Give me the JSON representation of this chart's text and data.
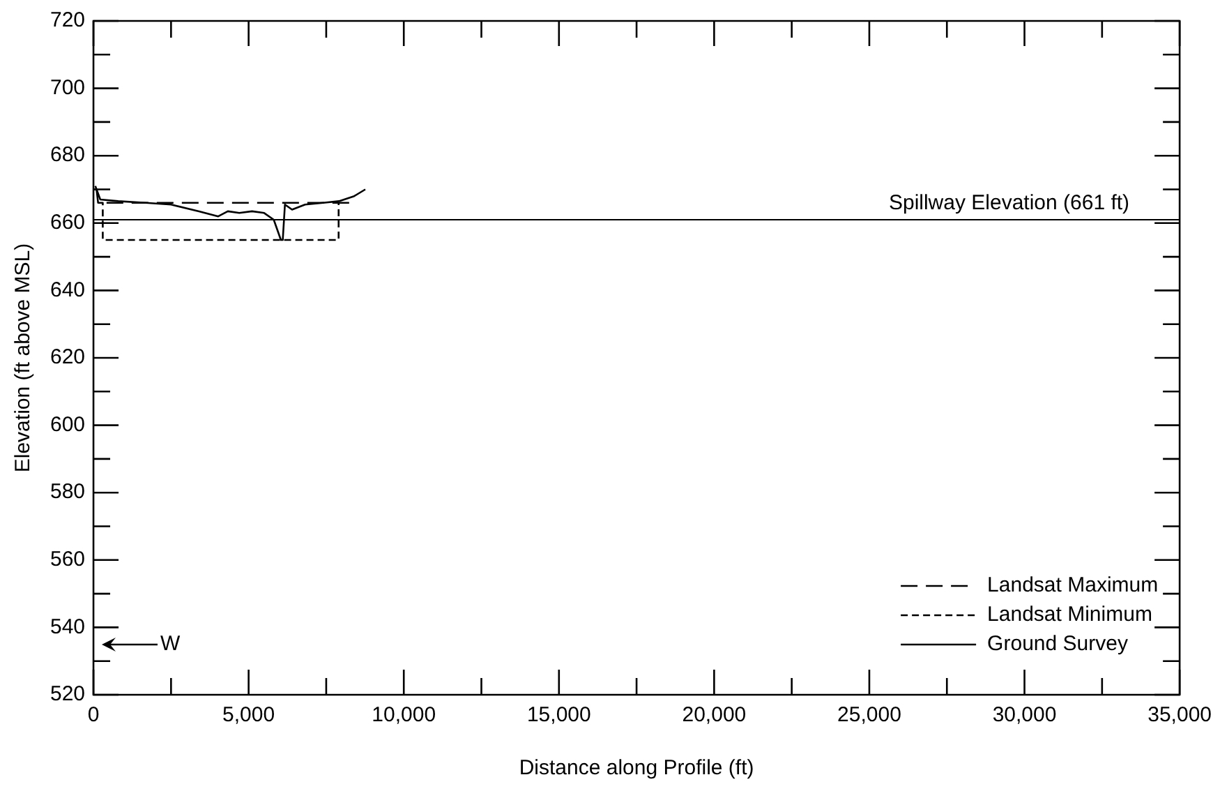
{
  "chart_data": {
    "type": "line",
    "xlabel": "Distance along Profile (ft)",
    "ylabel": "Elevation (ft above MSL)",
    "xlim": [
      0,
      35000
    ],
    "ylim": [
      520,
      720
    ],
    "xticks": [
      {
        "value": 0,
        "label": "0"
      },
      {
        "value": 2500,
        "label": null
      },
      {
        "value": 5000,
        "label": "5,000"
      },
      {
        "value": 7500,
        "label": null
      },
      {
        "value": 10000,
        "label": "10,000"
      },
      {
        "value": 12500,
        "label": null
      },
      {
        "value": 15000,
        "label": "15,000"
      },
      {
        "value": 17500,
        "label": null
      },
      {
        "value": 20000,
        "label": "20,000"
      },
      {
        "value": 22500,
        "label": null
      },
      {
        "value": 25000,
        "label": "25,000"
      },
      {
        "value": 27500,
        "label": null
      },
      {
        "value": 30000,
        "label": "30,000"
      },
      {
        "value": 32500,
        "label": null
      },
      {
        "value": 35000,
        "label": "35,000"
      }
    ],
    "yticks": [
      520,
      {
        "value": 530,
        "label": null
      },
      540,
      {
        "value": 550,
        "label": null
      },
      560,
      {
        "value": 570,
        "label": null
      },
      580,
      {
        "value": 590,
        "label": null
      },
      600,
      {
        "value": 610,
        "label": null
      },
      620,
      {
        "value": 630,
        "label": null
      },
      640,
      {
        "value": 650,
        "label": null
      },
      660,
      {
        "value": 670,
        "label": null
      },
      680,
      {
        "value": 690,
        "label": null
      },
      700,
      {
        "value": 710,
        "label": null
      },
      720
    ],
    "grid": false,
    "legend": "bottom right",
    "marker": "none",
    "series": [
      {
        "name": "Landsat Maximum",
        "color": "#000000",
        "line_style": "dashed",
        "x": [
          0,
          100,
          150,
          8500,
          8500
        ],
        "values": [
          670,
          670,
          666,
          666,
          666
        ]
      },
      {
        "name": "Landsat Minimum",
        "color": "#000000",
        "line_style": "dotted",
        "x": [
          150,
          300,
          300,
          7900,
          7900
        ],
        "values": [
          666,
          666,
          655,
          655,
          666
        ]
      },
      {
        "name": "Ground Survey",
        "color": "#000000",
        "line_style": "solid",
        "x": [
          60,
          220,
          800,
          1690,
          2500,
          3400,
          4020,
          4330,
          4700,
          5110,
          5500,
          5810,
          6040,
          6100,
          6170,
          6400,
          6820,
          7400,
          7910,
          8400,
          8760
        ],
        "values": [
          671,
          667,
          666.5,
          666,
          665.5,
          663.5,
          662,
          663.5,
          663,
          663.5,
          663,
          661,
          655,
          655,
          665.5,
          664,
          665.5,
          666,
          666.5,
          668,
          670
        ]
      }
    ],
    "ref_lines": [
      {
        "axis": "y",
        "value": 661,
        "label": "Spillway Elevation (661 ft)",
        "color": "#000000",
        "line_style": "solid"
      }
    ],
    "annotations": [
      "W"
    ]
  }
}
